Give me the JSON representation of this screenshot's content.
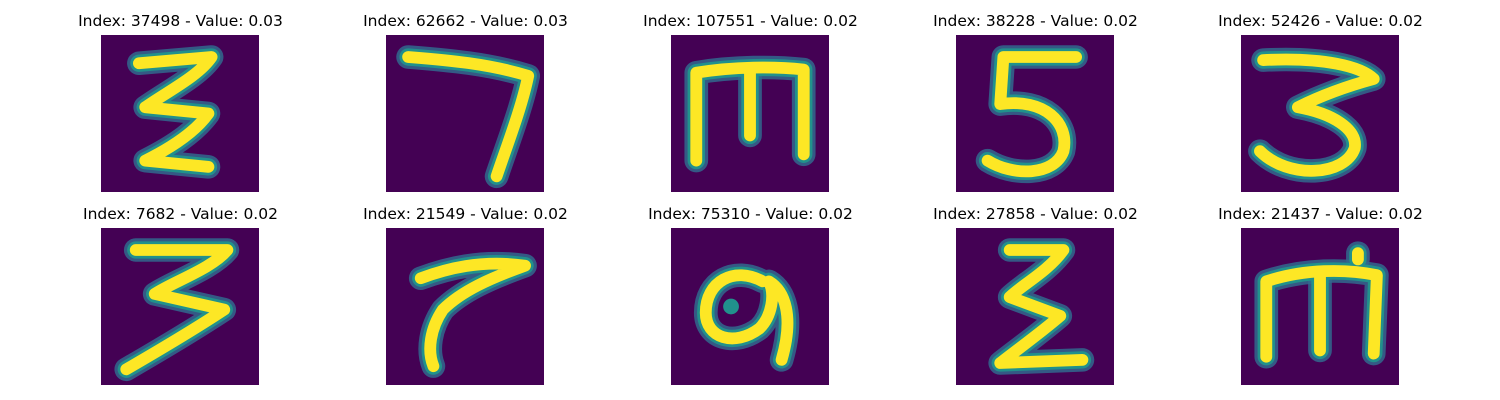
{
  "palette": {
    "background": "#440154",
    "edge": "#31688e",
    "mid": "#21918c",
    "bright": "#fde725"
  },
  "images": [
    {
      "title": "Index: 37498 - Value: 0.03",
      "glyph": "zigzag-3-figure"
    },
    {
      "title": "Index: 62662 - Value: 0.03",
      "glyph": "seven-figure"
    },
    {
      "title": "Index: 107551 - Value: 0.02",
      "glyph": "m-shaped-figure"
    },
    {
      "title": "Index: 38228 - Value: 0.02",
      "glyph": "five-figure"
    },
    {
      "title": "Index: 52426 - Value: 0.02",
      "glyph": "three-figure"
    },
    {
      "title": "Index: 7682 - Value: 0.02",
      "glyph": "zigzag-3-figure"
    },
    {
      "title": "Index: 21549 - Value: 0.02",
      "glyph": "curved-stroke-figure"
    },
    {
      "title": "Index: 75310 - Value: 0.02",
      "glyph": "loop-figure"
    },
    {
      "title": "Index: 27858 - Value: 0.02",
      "glyph": "zigzag-figure"
    },
    {
      "title": "Index: 21437 - Value: 0.02",
      "glyph": "m-shaped-figure"
    }
  ]
}
